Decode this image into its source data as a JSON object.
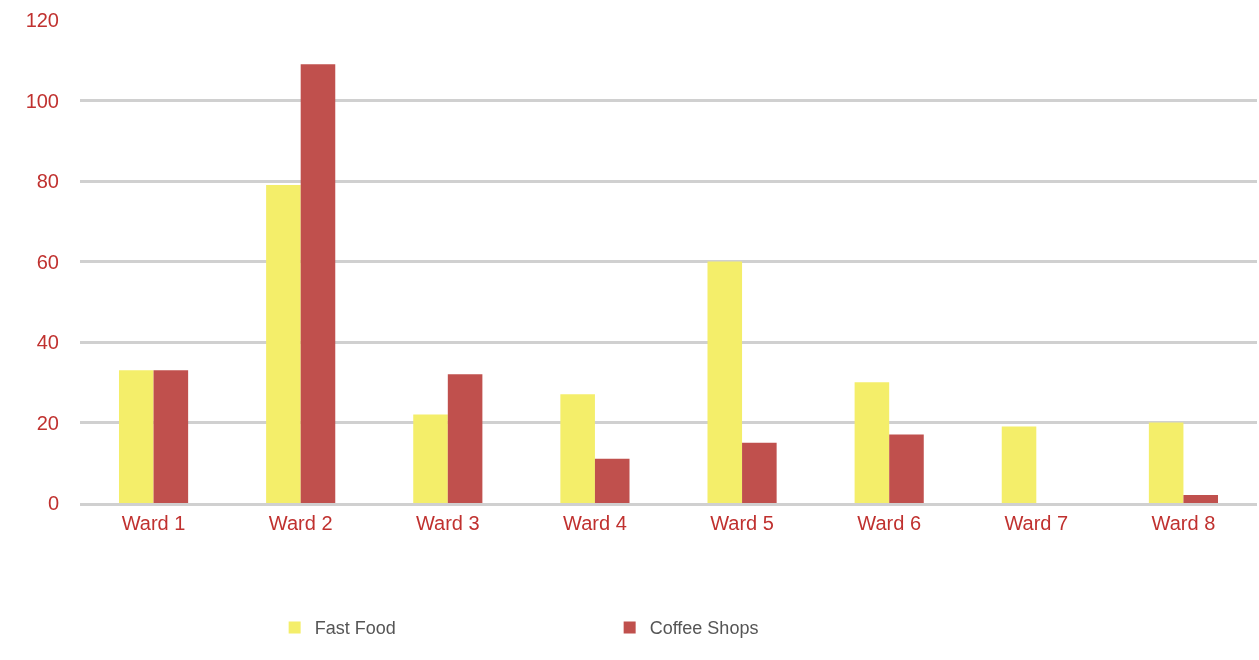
{
  "chart_data": {
    "type": "bar",
    "categories": [
      "Ward 1",
      "Ward 2",
      "Ward 3",
      "Ward 4",
      "Ward 5",
      "Ward 6",
      "Ward 7",
      "Ward 8"
    ],
    "series": [
      {
        "name": "Fast Food",
        "color": "#f4ee6a",
        "values": [
          33,
          79,
          22,
          27,
          60,
          30,
          19,
          20
        ]
      },
      {
        "name": "Coffee Shops",
        "color": "#c0504d",
        "values": [
          33,
          109,
          32,
          11,
          15,
          17,
          0,
          2
        ]
      }
    ],
    "ylim": [
      0,
      120
    ],
    "yticks": [
      0,
      20,
      40,
      60,
      80,
      100,
      120
    ],
    "grid": "y",
    "legend": "bottom"
  }
}
